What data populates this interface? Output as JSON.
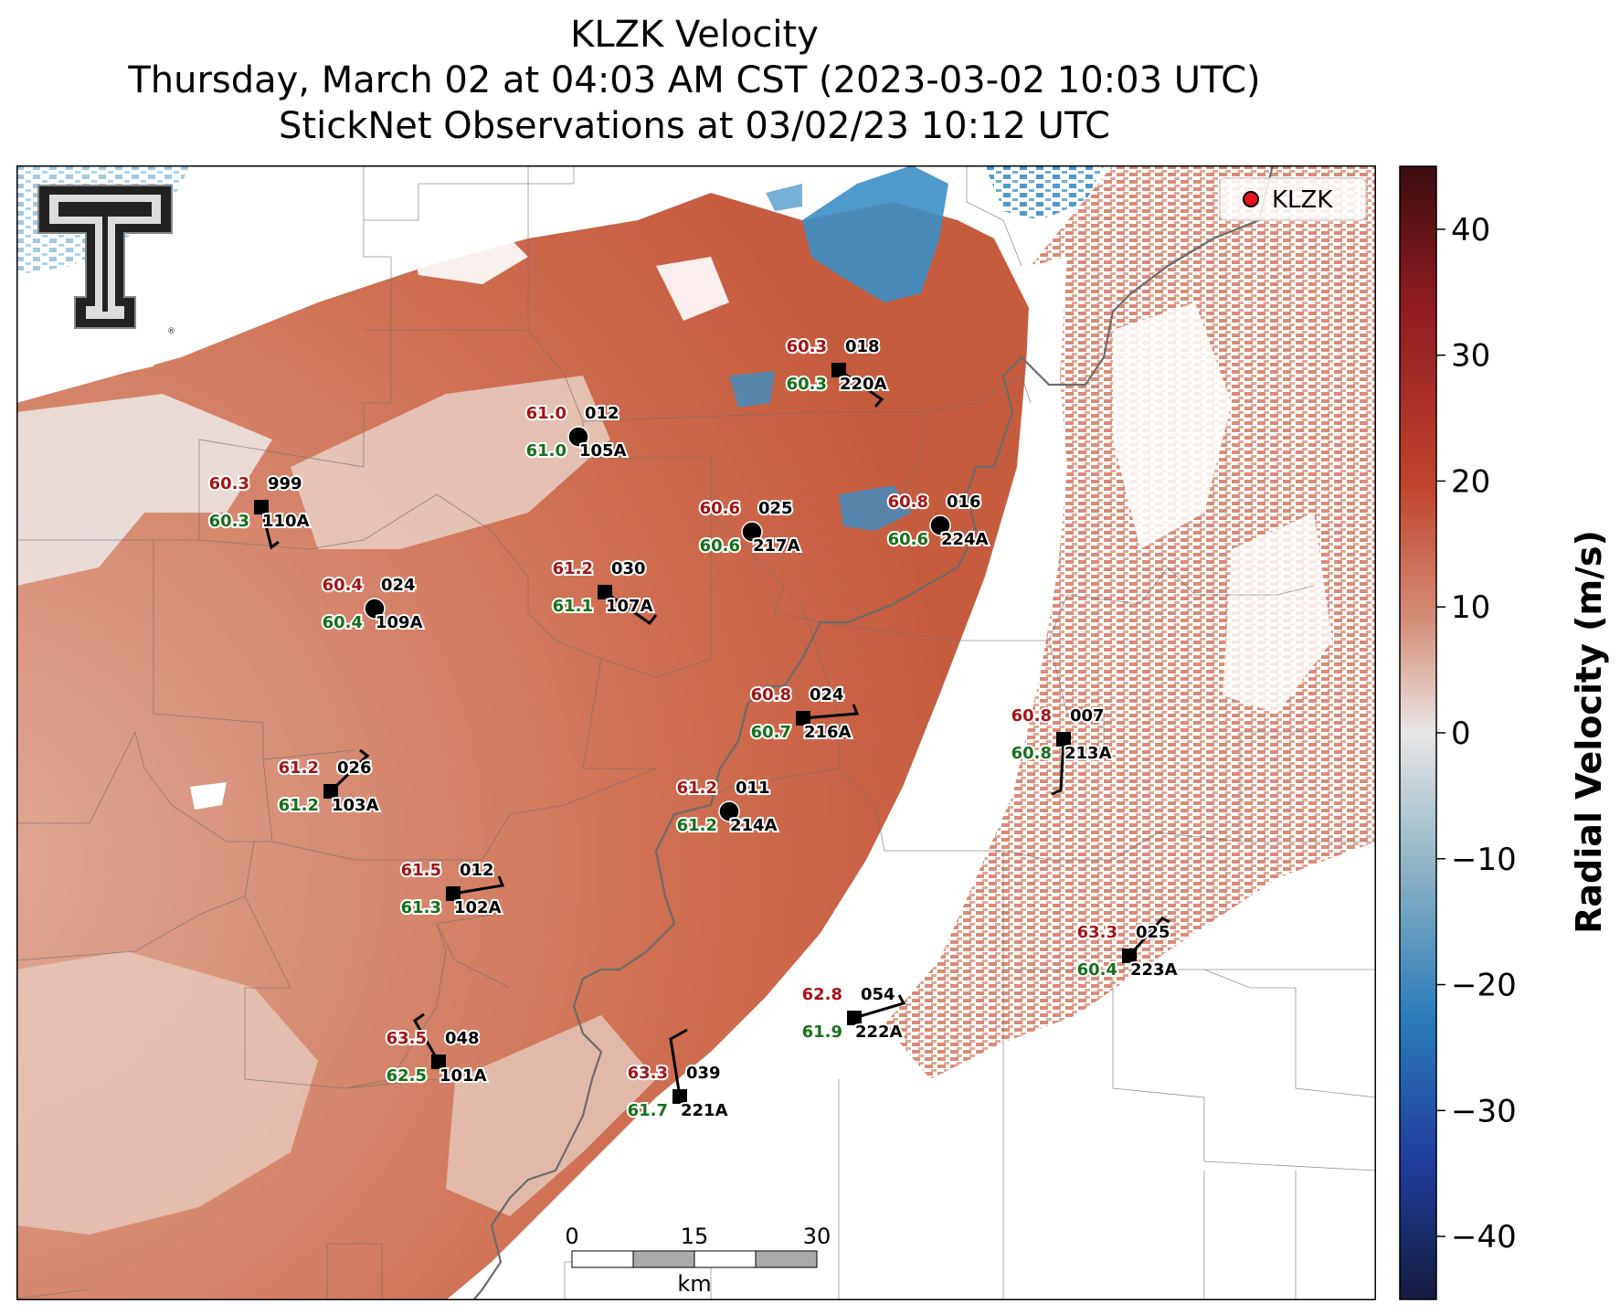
{
  "title": {
    "line1": "KLZK Velocity",
    "line2": "Thursday, March 02 at 04:03 AM CST (2023-03-02 10:03 UTC)",
    "line3": "StickNet Observations at 03/02/23 10:12 UTC"
  },
  "legend": {
    "label": "KLZK",
    "marker_color": "#e8141b"
  },
  "colorbar": {
    "label": "Radial Velocity (m/s)",
    "ticks": [
      "40",
      "30",
      "20",
      "10",
      "0",
      "−10",
      "−20",
      "−30",
      "−40"
    ],
    "range": [
      -45,
      45
    ],
    "colors": {
      "neg_max": "#161a3e",
      "neg": "#2b7bba",
      "zero": "#e9e6e6",
      "pos": "#c6553a",
      "pos_max": "#3b0d10"
    }
  },
  "scalebar": {
    "ticks": [
      "0",
      "15",
      "30"
    ],
    "unit": "km"
  },
  "logo": {
    "text": "T",
    "name": "Texas Tech double-T logo"
  },
  "stations": [
    {
      "id": "999",
      "name": "110A",
      "red": "60.3",
      "green": "60.3",
      "symbol": "square"
    },
    {
      "id": "012",
      "name": "105A",
      "red": "61.0",
      "green": "61.0",
      "symbol": "circle"
    },
    {
      "id": "018",
      "name": "220A",
      "red": "60.3",
      "green": "60.3",
      "symbol": "square"
    },
    {
      "id": "025",
      "name": "217A",
      "red": "60.6",
      "green": "60.6",
      "symbol": "circle"
    },
    {
      "id": "016",
      "name": "224A",
      "red": "60.8",
      "green": "60.6",
      "symbol": "circle"
    },
    {
      "id": "024",
      "name": "109A",
      "red": "60.4",
      "green": "60.4",
      "symbol": "circle"
    },
    {
      "id": "030",
      "name": "107A",
      "red": "61.2",
      "green": "61.1",
      "symbol": "square"
    },
    {
      "id": "024",
      "name": "216A",
      "red": "60.8",
      "green": "60.7",
      "symbol": "square"
    },
    {
      "id": "007",
      "name": "213A",
      "red": "60.8",
      "green": "60.8",
      "symbol": "square"
    },
    {
      "id": "026",
      "name": "103A",
      "red": "61.2",
      "green": "61.2",
      "symbol": "square"
    },
    {
      "id": "011",
      "name": "214A",
      "red": "61.2",
      "green": "61.2",
      "symbol": "circle"
    },
    {
      "id": "012",
      "name": "102A",
      "red": "61.5",
      "green": "61.3",
      "symbol": "square"
    },
    {
      "id": "025",
      "name": "223A",
      "red": "63.3",
      "green": "60.4",
      "symbol": "square"
    },
    {
      "id": "054",
      "name": "222A",
      "red": "62.8",
      "green": "61.9",
      "symbol": "square"
    },
    {
      "id": "048",
      "name": "101A",
      "red": "63.5",
      "green": "62.5",
      "symbol": "square"
    },
    {
      "id": "039",
      "name": "221A",
      "red": "63.3",
      "green": "61.7",
      "symbol": "square"
    }
  ]
}
